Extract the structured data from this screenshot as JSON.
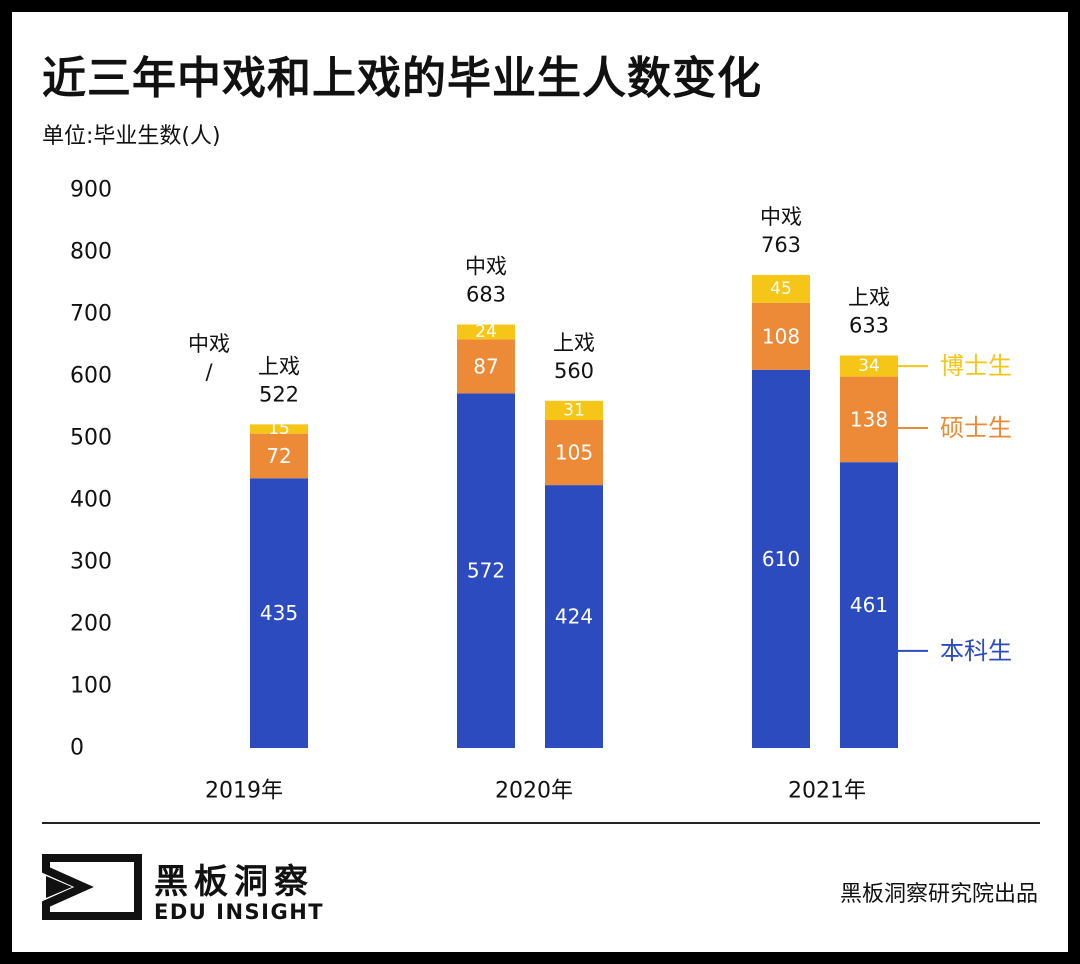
{
  "title": "近三年中戏和上戏的毕业生人数变化",
  "unit_label": "单位:毕业生数(人)",
  "colors": {
    "undergrad": "#2c4bbf",
    "master": "#ec8a37",
    "doctor": "#f5c518",
    "text": "#111111"
  },
  "chart_data": {
    "type": "bar",
    "stacked": true,
    "title": "近三年中戏和上戏的毕业生人数变化",
    "ylabel": "单位:毕业生数(人)",
    "ylim": [
      0,
      900
    ],
    "yticks": [
      0,
      100,
      200,
      300,
      400,
      500,
      600,
      700,
      800,
      900
    ],
    "ytick_labels": [
      "0",
      "100",
      "200",
      "300",
      "400",
      "500",
      "600",
      "700",
      "800",
      "900"
    ],
    "categories": [
      "2019年",
      "2020年",
      "2021年"
    ],
    "series_names": [
      "本科生",
      "硕士生",
      "博士生"
    ],
    "groups": [
      {
        "year": "2019年",
        "bars": [
          {
            "school": "中戏",
            "total": "/",
            "values": null
          },
          {
            "school": "上戏",
            "total": "522",
            "values": [
              435,
              72,
              15
            ]
          }
        ]
      },
      {
        "year": "2020年",
        "bars": [
          {
            "school": "中戏",
            "total": "683",
            "values": [
              572,
              87,
              24
            ]
          },
          {
            "school": "上戏",
            "total": "560",
            "values": [
              424,
              105,
              31
            ]
          }
        ]
      },
      {
        "year": "2021年",
        "bars": [
          {
            "school": "中戏",
            "total": "763",
            "values": [
              610,
              108,
              45
            ]
          },
          {
            "school": "上戏",
            "total": "633",
            "values": [
              461,
              138,
              34
            ]
          }
        ]
      }
    ],
    "legend": [
      {
        "label": "博士生",
        "series": 2
      },
      {
        "label": "硕士生",
        "series": 1
      },
      {
        "label": "本科生",
        "series": 0
      }
    ]
  },
  "footer": {
    "brand_cn": "黑板洞察",
    "brand_en": "EDU INSIGHT",
    "credit": "黑板洞察研究院出品",
    "logo_icon": "eye-frame-icon"
  }
}
